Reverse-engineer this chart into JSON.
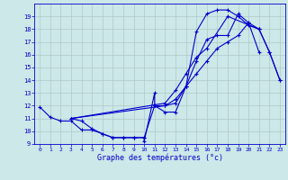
{
  "bg_color": "#cce8e8",
  "grid_color": "#b0c8c8",
  "line_color": "#0000cc",
  "xlabel": "Graphe des températures (°c)",
  "ylim": [
    9,
    20
  ],
  "xlim": [
    -0.5,
    23.5
  ],
  "yticks": [
    9,
    10,
    11,
    12,
    13,
    14,
    15,
    16,
    17,
    18,
    19
  ],
  "xticks": [
    0,
    1,
    2,
    3,
    4,
    5,
    6,
    7,
    8,
    9,
    10,
    11,
    12,
    13,
    14,
    15,
    16,
    17,
    18,
    19,
    20,
    21,
    22,
    23
  ],
  "series": [
    {
      "x": [
        0,
        1,
        2,
        3,
        4,
        5,
        6,
        7,
        8,
        9,
        10,
        11,
        12,
        13,
        14,
        15,
        16,
        17,
        18,
        19,
        20,
        21
      ],
      "y": [
        11.9,
        11.1,
        10.8,
        10.8,
        10.1,
        10.1,
        9.8,
        9.5,
        9.5,
        9.5,
        9.5,
        12.0,
        12.0,
        12.2,
        13.5,
        14.5,
        15.5,
        16.5,
        17.0,
        17.5,
        18.5,
        16.2
      ]
    },
    {
      "x": [
        3,
        4,
        5,
        6,
        7,
        8,
        9,
        10,
        10,
        11,
        11,
        12,
        13,
        14,
        15,
        16,
        17,
        18,
        19,
        20,
        21
      ],
      "y": [
        11.0,
        10.8,
        10.2,
        9.8,
        9.5,
        9.5,
        9.5,
        9.5,
        9.2,
        13.0,
        12.0,
        11.5,
        11.5,
        13.5,
        17.8,
        19.2,
        19.5,
        19.5,
        19.0,
        18.3,
        18.0
      ]
    },
    {
      "x": [
        3,
        12,
        13,
        14,
        15,
        16,
        18,
        21,
        22,
        23
      ],
      "y": [
        11.0,
        12.2,
        13.2,
        14.5,
        15.8,
        16.5,
        19.0,
        18.0,
        16.2,
        14.0
      ]
    },
    {
      "x": [
        3,
        12,
        13,
        14,
        15,
        16,
        17,
        18,
        19,
        20,
        21,
        22,
        23
      ],
      "y": [
        11.0,
        12.0,
        12.5,
        13.5,
        15.5,
        17.2,
        17.5,
        17.5,
        19.2,
        18.5,
        18.0,
        16.2,
        14.0
      ]
    }
  ]
}
